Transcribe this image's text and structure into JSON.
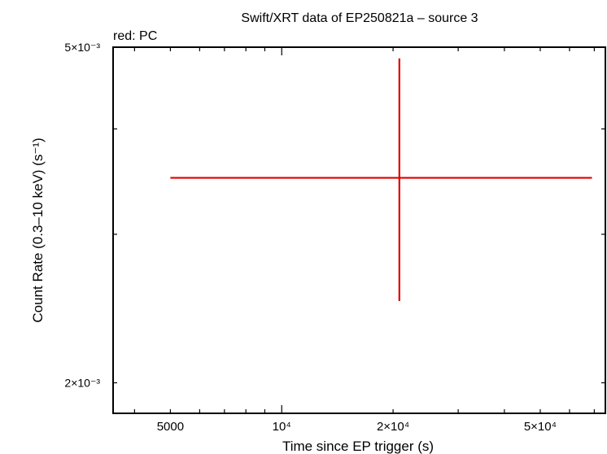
{
  "chart_data": {
    "type": "scatter",
    "title": "Swift/XRT data of EP250821a – source 3",
    "legend_text": "red: PC",
    "xlabel": "Time since EP trigger (s)",
    "ylabel": "Count Rate (0.3–10 keV) (s⁻¹)",
    "x_scale": "log",
    "y_scale": "log",
    "xlim": [
      3500,
      75000
    ],
    "ylim": [
      1.84,
      5.0
    ],
    "x_ticks": [
      {
        "value": 5000,
        "label": "5000"
      },
      {
        "value": 10000,
        "label": "10⁴"
      },
      {
        "value": 20000,
        "label": "2×10⁴"
      },
      {
        "value": 50000,
        "label": "5×10⁴"
      }
    ],
    "y_ticks": [
      {
        "value": 2,
        "label": "2×10⁻³"
      },
      {
        "value": 5,
        "label": "5×10⁻³"
      }
    ],
    "y_tick_unit": "×10⁻³ s⁻¹",
    "series": [
      {
        "color": "#e00000",
        "points": [
          {
            "x": 20800,
            "x_low": 5000,
            "x_high": 69000,
            "y": 3.5,
            "y_low": 2.5,
            "y_high": 4.85
          }
        ]
      }
    ],
    "grid": false
  }
}
